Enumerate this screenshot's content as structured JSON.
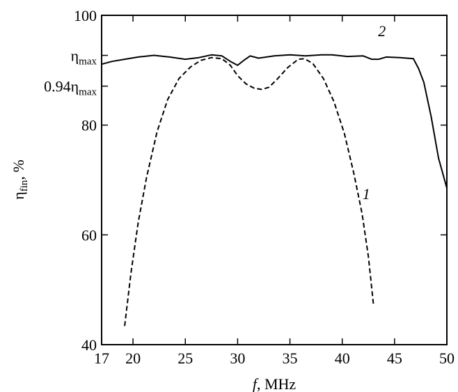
{
  "chart_data": {
    "type": "line",
    "xlabel_italic": "f",
    "xlabel_rest": ", MHz",
    "ylabel_main": "η",
    "ylabel_sub": "fin",
    "ylabel_rest": ", %",
    "xlim": [
      17,
      50
    ],
    "ylim": [
      40,
      100
    ],
    "x_ticks": [
      17,
      20,
      25,
      30,
      35,
      40,
      45,
      50
    ],
    "y_ticks": [
      {
        "value": 100,
        "text": "100"
      },
      {
        "value": 80,
        "text": "80"
      },
      {
        "value": 60,
        "text": "60"
      },
      {
        "value": 40,
        "text": "40"
      }
    ],
    "y_special_ticks": [
      {
        "value": 92.7,
        "main": "η",
        "sub": "max"
      },
      {
        "value": 87.1,
        "main": "0.94η",
        "sub": "max"
      }
    ],
    "grid": false,
    "series": [
      {
        "name": "1",
        "style": "dashed",
        "label_at": [
          42.3,
          66.5
        ],
        "points": [
          [
            19.2,
            43.4
          ],
          [
            19.8,
            53
          ],
          [
            20.5,
            62.3
          ],
          [
            21.3,
            70.5
          ],
          [
            22.3,
            78.8
          ],
          [
            23.3,
            84.6
          ],
          [
            24.4,
            88.5
          ],
          [
            25.5,
            90.6
          ],
          [
            26.5,
            91.8
          ],
          [
            27.5,
            92.3
          ],
          [
            28.5,
            92.1
          ],
          [
            29.3,
            90.9
          ],
          [
            30,
            89
          ],
          [
            30.8,
            87.5
          ],
          [
            31.6,
            86.7
          ],
          [
            32.3,
            86.5
          ],
          [
            33,
            86.9
          ],
          [
            33.8,
            88.4
          ],
          [
            34.8,
            90.5
          ],
          [
            35.8,
            92
          ],
          [
            36.4,
            92.1
          ],
          [
            37.2,
            91.2
          ],
          [
            38.2,
            88.5
          ],
          [
            39.2,
            84.3
          ],
          [
            40.2,
            78.5
          ],
          [
            41.1,
            71.3
          ],
          [
            41.9,
            63.8
          ],
          [
            42.5,
            56
          ],
          [
            43,
            47
          ]
        ]
      },
      {
        "name": "2",
        "style": "solid",
        "label_at": [
          43.8,
          96.2
        ],
        "points": [
          [
            17,
            91.1
          ],
          [
            18,
            91.6
          ],
          [
            19.2,
            92
          ],
          [
            20.5,
            92.4
          ],
          [
            22,
            92.7
          ],
          [
            23.5,
            92.4
          ],
          [
            25,
            92
          ],
          [
            26.3,
            92.3
          ],
          [
            27.5,
            92.8
          ],
          [
            28.5,
            92.6
          ],
          [
            29.3,
            91.6
          ],
          [
            30,
            90.9
          ],
          [
            30.6,
            91.8
          ],
          [
            31.2,
            92.6
          ],
          [
            32,
            92.2
          ],
          [
            33.5,
            92.6
          ],
          [
            35,
            92.8
          ],
          [
            36.5,
            92.6
          ],
          [
            38,
            92.8
          ],
          [
            39,
            92.8
          ],
          [
            40.5,
            92.5
          ],
          [
            42,
            92.6
          ],
          [
            42.8,
            92
          ],
          [
            43.5,
            92
          ],
          [
            44.2,
            92.4
          ],
          [
            45.5,
            92.3
          ],
          [
            46.8,
            92.1
          ],
          [
            47.3,
            90.3
          ],
          [
            47.8,
            87.8
          ],
          [
            48.5,
            81.5
          ],
          [
            49.2,
            74
          ],
          [
            50,
            68.5
          ]
        ]
      }
    ]
  }
}
